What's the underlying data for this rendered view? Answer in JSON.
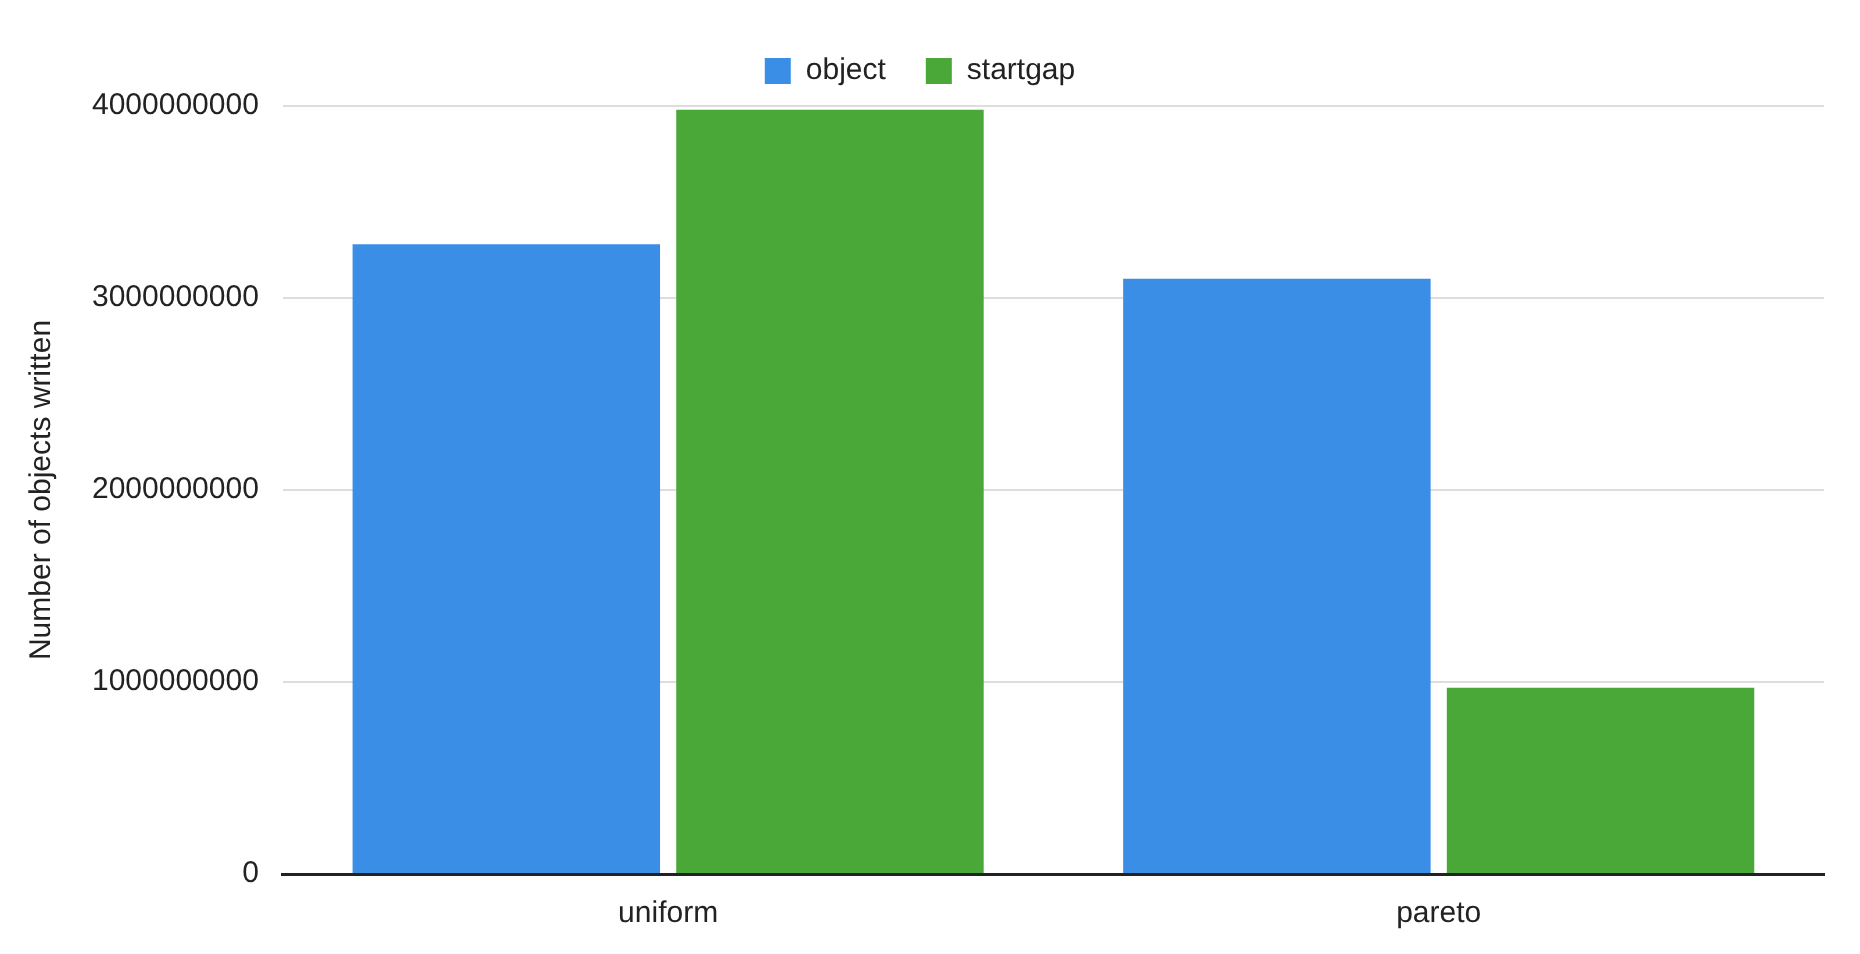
{
  "chart_data": {
    "type": "bar",
    "ylabel": "Number of objects written",
    "categories": [
      "uniform",
      "pareto"
    ],
    "series": [
      {
        "name": "object",
        "color": "#3a8ee6",
        "values": [
          3280000000,
          3100000000
        ]
      },
      {
        "name": "startgap",
        "color": "#4aa838",
        "values": [
          3980000000,
          970000000
        ]
      }
    ],
    "ylim": [
      0,
      4000000000
    ],
    "yticks": [
      0,
      1000000000,
      2000000000,
      3000000000,
      4000000000
    ],
    "grid": "y",
    "legend": "top"
  }
}
